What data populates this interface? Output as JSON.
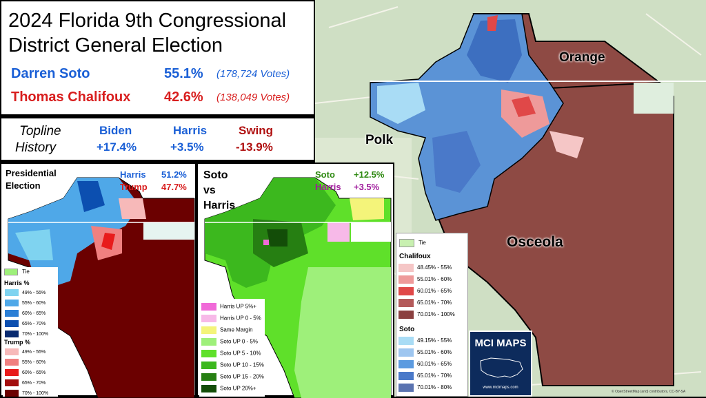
{
  "title": {
    "line1": "2024 Florida 9th Congressional",
    "line2": "District General Election"
  },
  "candidates": [
    {
      "name": "Darren Soto",
      "pct": "55.1%",
      "votes": "(178,724 Votes)",
      "color": "#1a5fd6"
    },
    {
      "name": "Thomas Chalifoux",
      "pct": "42.6%",
      "votes": "(138,049 Votes)",
      "color": "#d81e1e"
    }
  ],
  "topline": {
    "label1": "Topline",
    "label2": "History",
    "items": [
      {
        "name": "Biden",
        "value": "+17.4%",
        "color": "#1a5fd6"
      },
      {
        "name": "Harris",
        "value": "+3.5%",
        "color": "#1a5fd6"
      },
      {
        "name": "Swing",
        "value": "-13.9%",
        "color": "#b01010"
      }
    ]
  },
  "presidential": {
    "title1": "Presidential",
    "title2": "Election",
    "harris_label": "Harris",
    "harris_pct": "51.2%",
    "trump_label": "Trump",
    "trump_pct": "47.7%",
    "legend_tie": "Tie",
    "harris_header": "Harris  %",
    "harris_bins": [
      {
        "label": "49% - 55%",
        "color": "#7fd3f0"
      },
      {
        "label": "55% - 60%",
        "color": "#4fa8e8"
      },
      {
        "label": "60% - 65%",
        "color": "#2b7fd6"
      },
      {
        "label": "65% - 70%",
        "color": "#0c4fb0"
      },
      {
        "label": "70% - 100%",
        "color": "#082a70"
      }
    ],
    "trump_header": "Trump  %",
    "trump_bins": [
      {
        "label": "49% - 55%",
        "color": "#f7b9b9"
      },
      {
        "label": "55% - 60%",
        "color": "#f08080"
      },
      {
        "label": "60% - 65%",
        "color": "#e81b1b"
      },
      {
        "label": "65% - 70%",
        "color": "#a30d0d"
      },
      {
        "label": "70% - 100%",
        "color": "#6b0000"
      }
    ]
  },
  "soto_vs_harris": {
    "title1": "Soto",
    "title2": "vs",
    "title3": "Harris",
    "soto_label": "Soto",
    "soto_pct": "+12.5%",
    "harris_label": "Harris",
    "harris_pct": "+3.5%",
    "bins": [
      {
        "label": "Harris UP 5%+",
        "color": "#f06ad8"
      },
      {
        "label": "Harris UP 0 - 5%",
        "color": "#f7b9e8"
      },
      {
        "label": "Same Margin",
        "color": "#f4f47a"
      },
      {
        "label": "Soto UP 0 - 5%",
        "color": "#9ef07a"
      },
      {
        "label": "Soto UP 5 - 10%",
        "color": "#5fe02a"
      },
      {
        "label": "Soto UP 10 - 15%",
        "color": "#3cb81e"
      },
      {
        "label": "Soto UP 15 - 20%",
        "color": "#267f12"
      },
      {
        "label": "Soto UP 20%+",
        "color": "#134d08"
      }
    ]
  },
  "main_map": {
    "county_labels": [
      "Orange",
      "Polk",
      "Osceola"
    ],
    "legend_tie": "Tie",
    "chalifoux_header": "Chalifoux",
    "chalifoux_bins": [
      {
        "label": "48.45% - 55%",
        "color": "#f5c6c6"
      },
      {
        "label": "55.01% - 60%",
        "color": "#ee9a9a"
      },
      {
        "label": "60.01% - 65%",
        "color": "#e04848"
      },
      {
        "label": "65.01% - 70%",
        "color": "#b45a5a"
      },
      {
        "label": "70.01% - 100%",
        "color": "#8b4040"
      }
    ],
    "soto_header": "Soto",
    "soto_bins": [
      {
        "label": "49.15% - 55%",
        "color": "#a9dcf5"
      },
      {
        "label": "55.01% - 60%",
        "color": "#9ec6f0"
      },
      {
        "label": "60.01% - 65%",
        "color": "#5c9be0"
      },
      {
        "label": "65.01% - 70%",
        "color": "#4a79c9"
      },
      {
        "label": "70.01% - 80%",
        "color": "#5a73b0"
      }
    ],
    "logo_text": "MCI MAPS",
    "logo_url": "www.mcimaps.com",
    "attribution": "© OpenStreetMap (and) contributors, CC-BY-SA"
  }
}
